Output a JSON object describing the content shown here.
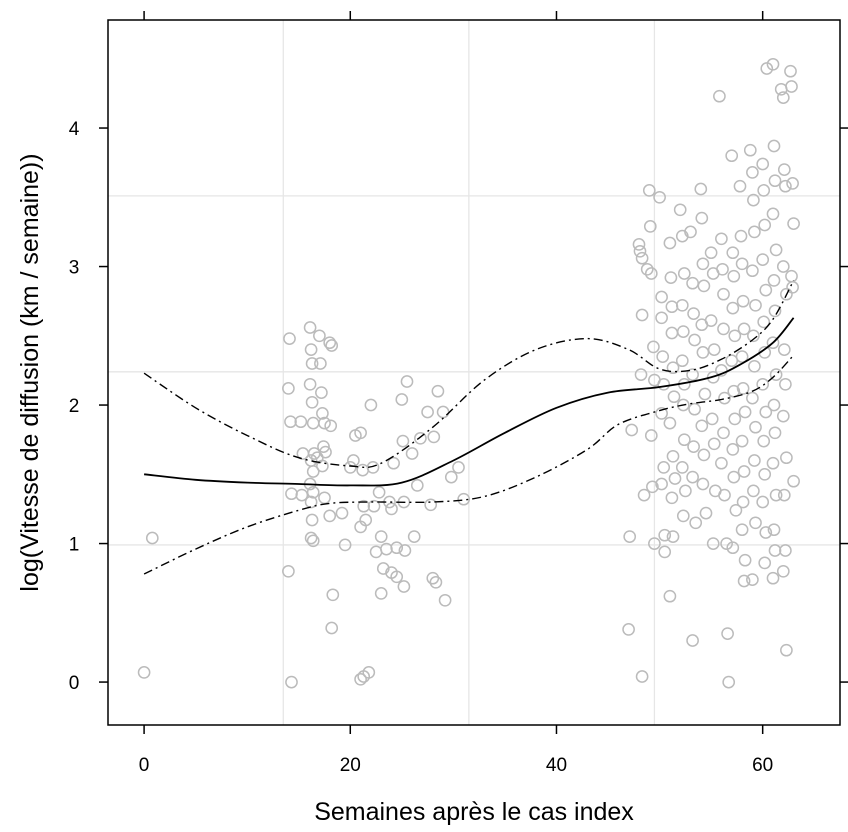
{
  "chart_data": {
    "type": "scatter",
    "title": "",
    "xlabel": "Semaines après le cas index",
    "ylabel": "log(Vitesse de diffusion (km / semaine))",
    "xlim": [
      -3.5,
      67.5
    ],
    "ylim": [
      -0.31,
      4.78
    ],
    "x_ticks": [
      0,
      20,
      40,
      60
    ],
    "y_ticks": [
      0,
      1,
      2,
      3,
      4
    ],
    "x_tick_labels": [
      "0",
      "20",
      "40",
      "60"
    ],
    "y_tick_labels": [
      "0",
      "1",
      "2",
      "3",
      "4"
    ],
    "grid": true,
    "grid_x": [
      13.5,
      31.5,
      49.5
    ],
    "grid_y": [
      0.99,
      2.24,
      3.51
    ],
    "point_color": "#bbbbbb",
    "line_color": "#000000",
    "fit": {
      "x": [
        0,
        5,
        10,
        15,
        20,
        25,
        30,
        35,
        40,
        45,
        50,
        55,
        58,
        61,
        63
      ],
      "y": [
        1.5,
        1.46,
        1.44,
        1.43,
        1.42,
        1.44,
        1.6,
        1.8,
        1.98,
        2.09,
        2.13,
        2.2,
        2.3,
        2.45,
        2.63
      ]
    },
    "upper_band": {
      "x": [
        0,
        5,
        10,
        15,
        20,
        23,
        28,
        33,
        38,
        43,
        47,
        50,
        53,
        56,
        59,
        61,
        63
      ],
      "y": [
        2.23,
        1.98,
        1.78,
        1.62,
        1.56,
        1.58,
        1.84,
        2.18,
        2.4,
        2.48,
        2.4,
        2.26,
        2.25,
        2.33,
        2.47,
        2.62,
        2.9
      ]
    },
    "lower_band": {
      "x": [
        0,
        5,
        10,
        15,
        18,
        22,
        28,
        33,
        38,
        43,
        46,
        50,
        53,
        56,
        59,
        61,
        63
      ],
      "y": [
        0.78,
        0.96,
        1.12,
        1.24,
        1.29,
        1.3,
        1.3,
        1.34,
        1.48,
        1.68,
        1.86,
        1.96,
        2.01,
        2.04,
        2.1,
        2.2,
        2.36
      ]
    },
    "points": [
      [
        0.0,
        0.07
      ],
      [
        0.8,
        1.04
      ],
      [
        14.1,
        2.48
      ],
      [
        14.0,
        2.12
      ],
      [
        14.2,
        1.88
      ],
      [
        14.3,
        1.36
      ],
      [
        14.0,
        0.8
      ],
      [
        14.3,
        0.0
      ],
      [
        15.2,
        1.88
      ],
      [
        15.3,
        1.35
      ],
      [
        15.4,
        1.65
      ],
      [
        16.1,
        2.56
      ],
      [
        16.2,
        2.4
      ],
      [
        16.3,
        2.3
      ],
      [
        16.1,
        2.15
      ],
      [
        16.3,
        2.02
      ],
      [
        16.4,
        1.87
      ],
      [
        16.5,
        1.65
      ],
      [
        16.2,
        1.6
      ],
      [
        16.4,
        1.52
      ],
      [
        16.1,
        1.43
      ],
      [
        16.4,
        1.37
      ],
      [
        16.2,
        1.3
      ],
      [
        16.3,
        1.17
      ],
      [
        16.2,
        1.04
      ],
      [
        16.4,
        1.02
      ],
      [
        16.8,
        1.62
      ],
      [
        17.0,
        2.5
      ],
      [
        17.1,
        2.3
      ],
      [
        17.2,
        2.09
      ],
      [
        17.3,
        1.94
      ],
      [
        17.5,
        1.87
      ],
      [
        17.4,
        1.7
      ],
      [
        17.6,
        1.66
      ],
      [
        17.3,
        1.56
      ],
      [
        17.5,
        1.33
      ],
      [
        18.0,
        2.45
      ],
      [
        18.2,
        2.43
      ],
      [
        18.1,
        1.85
      ],
      [
        18.0,
        1.2
      ],
      [
        18.3,
        0.63
      ],
      [
        18.2,
        0.39
      ],
      [
        19.2,
        1.22
      ],
      [
        19.5,
        0.99
      ],
      [
        20.0,
        1.55
      ],
      [
        20.3,
        1.6
      ],
      [
        20.5,
        1.78
      ],
      [
        21.0,
        1.8
      ],
      [
        21.2,
        1.53
      ],
      [
        21.3,
        1.27
      ],
      [
        21.5,
        1.17
      ],
      [
        21.0,
        1.12
      ],
      [
        21.0,
        0.02
      ],
      [
        21.3,
        0.04
      ],
      [
        21.8,
        0.07
      ],
      [
        22.0,
        2.0
      ],
      [
        22.2,
        1.55
      ],
      [
        22.3,
        1.27
      ],
      [
        22.5,
        0.94
      ],
      [
        22.8,
        1.37
      ],
      [
        23.0,
        1.05
      ],
      [
        23.2,
        0.82
      ],
      [
        23.5,
        0.96
      ],
      [
        23.0,
        0.64
      ],
      [
        23.8,
        1.3
      ],
      [
        24.0,
        1.25
      ],
      [
        24.2,
        1.58
      ],
      [
        24.5,
        0.97
      ],
      [
        24.0,
        0.79
      ],
      [
        24.5,
        0.76
      ],
      [
        25.0,
        2.04
      ],
      [
        25.1,
        1.74
      ],
      [
        25.2,
        1.3
      ],
      [
        25.5,
        2.17
      ],
      [
        25.3,
        0.95
      ],
      [
        25.2,
        0.69
      ],
      [
        26.0,
        1.65
      ],
      [
        26.5,
        1.42
      ],
      [
        26.2,
        1.05
      ],
      [
        26.8,
        1.76
      ],
      [
        27.5,
        1.95
      ],
      [
        27.8,
        1.28
      ],
      [
        28.1,
        1.77
      ],
      [
        28.0,
        0.75
      ],
      [
        28.3,
        0.72
      ],
      [
        28.5,
        2.1
      ],
      [
        29.0,
        1.95
      ],
      [
        29.2,
        0.59
      ],
      [
        29.8,
        1.48
      ],
      [
        30.5,
        1.55
      ],
      [
        31.0,
        1.32
      ],
      [
        47.0,
        0.38
      ],
      [
        47.1,
        1.05
      ],
      [
        47.3,
        1.82
      ],
      [
        48.0,
        3.16
      ],
      [
        48.1,
        3.11
      ],
      [
        48.3,
        3.06
      ],
      [
        48.3,
        2.65
      ],
      [
        48.2,
        2.22
      ],
      [
        48.5,
        1.35
      ],
      [
        48.3,
        0.04
      ],
      [
        48.8,
        2.98
      ],
      [
        49.0,
        3.55
      ],
      [
        49.1,
        3.29
      ],
      [
        49.2,
        2.95
      ],
      [
        49.4,
        2.42
      ],
      [
        49.5,
        2.18
      ],
      [
        49.2,
        1.78
      ],
      [
        49.3,
        1.41
      ],
      [
        49.5,
        1.0
      ],
      [
        50.0,
        3.5
      ],
      [
        50.2,
        2.78
      ],
      [
        50.2,
        2.63
      ],
      [
        50.3,
        2.35
      ],
      [
        50.4,
        2.15
      ],
      [
        50.2,
        1.94
      ],
      [
        50.4,
        1.55
      ],
      [
        50.2,
        1.43
      ],
      [
        50.5,
        1.06
      ],
      [
        50.5,
        0.94
      ],
      [
        51.0,
        3.17
      ],
      [
        51.1,
        2.92
      ],
      [
        51.2,
        2.71
      ],
      [
        51.2,
        2.52
      ],
      [
        51.3,
        2.27
      ],
      [
        51.4,
        2.06
      ],
      [
        51.0,
        1.87
      ],
      [
        51.3,
        1.63
      ],
      [
        51.5,
        1.47
      ],
      [
        51.2,
        1.33
      ],
      [
        51.3,
        1.05
      ],
      [
        51.0,
        0.62
      ],
      [
        52.0,
        3.41
      ],
      [
        52.2,
        3.22
      ],
      [
        52.4,
        2.95
      ],
      [
        52.2,
        2.72
      ],
      [
        52.3,
        2.53
      ],
      [
        52.2,
        2.32
      ],
      [
        52.4,
        2.15
      ],
      [
        52.3,
        2.0
      ],
      [
        52.4,
        1.75
      ],
      [
        52.2,
        1.55
      ],
      [
        52.5,
        1.38
      ],
      [
        52.3,
        1.2
      ],
      [
        53.0,
        3.25
      ],
      [
        53.2,
        2.88
      ],
      [
        53.3,
        2.66
      ],
      [
        53.4,
        2.47
      ],
      [
        53.2,
        2.22
      ],
      [
        53.4,
        1.97
      ],
      [
        53.3,
        1.7
      ],
      [
        53.2,
        1.48
      ],
      [
        53.5,
        1.15
      ],
      [
        53.2,
        0.3
      ],
      [
        54.0,
        3.56
      ],
      [
        54.1,
        3.35
      ],
      [
        54.2,
        3.02
      ],
      [
        54.3,
        2.86
      ],
      [
        54.1,
        2.58
      ],
      [
        54.2,
        2.38
      ],
      [
        54.4,
        2.08
      ],
      [
        54.1,
        1.85
      ],
      [
        54.3,
        1.64
      ],
      [
        54.2,
        1.43
      ],
      [
        54.5,
        1.22
      ],
      [
        55.0,
        3.1
      ],
      [
        55.2,
        2.95
      ],
      [
        55.0,
        2.61
      ],
      [
        55.3,
        2.4
      ],
      [
        55.2,
        2.2
      ],
      [
        55.1,
        1.9
      ],
      [
        55.3,
        1.72
      ],
      [
        55.4,
        1.38
      ],
      [
        55.2,
        1.0
      ],
      [
        55.8,
        4.23
      ],
      [
        56.0,
        3.2
      ],
      [
        56.1,
        2.98
      ],
      [
        56.2,
        2.8
      ],
      [
        56.2,
        2.55
      ],
      [
        56.0,
        2.25
      ],
      [
        56.3,
        2.05
      ],
      [
        56.2,
        1.8
      ],
      [
        56.0,
        1.58
      ],
      [
        56.3,
        1.35
      ],
      [
        56.5,
        1.0
      ],
      [
        56.6,
        0.35
      ],
      [
        56.7,
        0.0
      ],
      [
        57.0,
        3.8
      ],
      [
        57.1,
        3.1
      ],
      [
        57.2,
        2.93
      ],
      [
        57.1,
        2.7
      ],
      [
        57.3,
        2.5
      ],
      [
        57.0,
        2.32
      ],
      [
        57.2,
        2.1
      ],
      [
        57.3,
        1.9
      ],
      [
        57.1,
        1.68
      ],
      [
        57.2,
        1.48
      ],
      [
        57.4,
        1.24
      ],
      [
        57.1,
        0.97
      ],
      [
        57.8,
        3.58
      ],
      [
        57.9,
        3.22
      ],
      [
        58.0,
        3.02
      ],
      [
        58.1,
        2.75
      ],
      [
        58.2,
        2.55
      ],
      [
        58.0,
        2.35
      ],
      [
        58.1,
        2.12
      ],
      [
        58.3,
        1.95
      ],
      [
        58.0,
        1.74
      ],
      [
        58.2,
        1.52
      ],
      [
        58.1,
        1.3
      ],
      [
        58.0,
        1.1
      ],
      [
        58.3,
        0.88
      ],
      [
        58.2,
        0.73
      ],
      [
        58.8,
        3.84
      ],
      [
        59.0,
        3.68
      ],
      [
        59.1,
        3.48
      ],
      [
        59.2,
        3.25
      ],
      [
        59.0,
        2.97
      ],
      [
        59.3,
        2.72
      ],
      [
        59.1,
        2.5
      ],
      [
        59.2,
        2.28
      ],
      [
        59.0,
        2.05
      ],
      [
        59.3,
        1.84
      ],
      [
        59.2,
        1.6
      ],
      [
        59.1,
        1.38
      ],
      [
        59.3,
        1.15
      ],
      [
        59.0,
        0.74
      ],
      [
        60.0,
        3.74
      ],
      [
        60.1,
        3.55
      ],
      [
        60.2,
        3.3
      ],
      [
        60.0,
        3.05
      ],
      [
        60.3,
        2.83
      ],
      [
        60.1,
        2.6
      ],
      [
        60.2,
        2.38
      ],
      [
        60.0,
        2.15
      ],
      [
        60.3,
        1.95
      ],
      [
        60.1,
        1.74
      ],
      [
        60.2,
        1.5
      ],
      [
        60.0,
        1.3
      ],
      [
        60.3,
        1.08
      ],
      [
        60.2,
        0.86
      ],
      [
        60.4,
        4.43
      ],
      [
        61.0,
        4.46
      ],
      [
        61.1,
        3.87
      ],
      [
        61.2,
        3.62
      ],
      [
        61.0,
        3.38
      ],
      [
        61.3,
        3.12
      ],
      [
        61.1,
        2.9
      ],
      [
        61.2,
        2.68
      ],
      [
        61.0,
        2.45
      ],
      [
        61.3,
        2.22
      ],
      [
        61.1,
        2.0
      ],
      [
        61.2,
        1.8
      ],
      [
        61.0,
        1.58
      ],
      [
        61.3,
        1.35
      ],
      [
        61.1,
        1.1
      ],
      [
        61.2,
        0.95
      ],
      [
        61.0,
        0.75
      ],
      [
        61.8,
        4.28
      ],
      [
        62.0,
        4.22
      ],
      [
        62.1,
        3.7
      ],
      [
        62.2,
        3.58
      ],
      [
        62.0,
        3.0
      ],
      [
        62.3,
        2.8
      ],
      [
        62.1,
        2.4
      ],
      [
        62.2,
        2.15
      ],
      [
        62.0,
        1.92
      ],
      [
        62.3,
        1.62
      ],
      [
        62.1,
        1.35
      ],
      [
        62.2,
        0.95
      ],
      [
        62.0,
        0.8
      ],
      [
        62.3,
        0.23
      ],
      [
        62.7,
        4.41
      ],
      [
        62.8,
        4.3
      ],
      [
        62.9,
        3.6
      ],
      [
        63.0,
        3.31
      ],
      [
        62.8,
        2.93
      ],
      [
        62.9,
        2.85
      ],
      [
        63.0,
        1.45
      ]
    ]
  }
}
